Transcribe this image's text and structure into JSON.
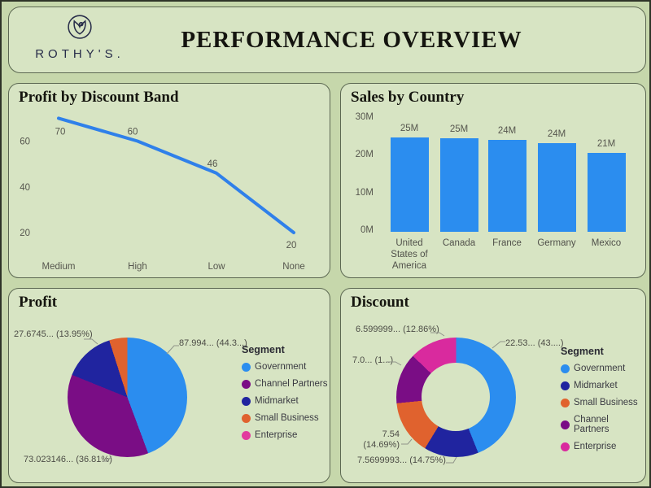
{
  "header": {
    "brand": "ROTHY'S.",
    "title": "PERFORMANCE OVERVIEW",
    "logo_icon": "rothys-tulip-bud-logo"
  },
  "colors": {
    "page_background": "#c6d7ab",
    "panel_background": "#d7e4c3",
    "panel_border": "#5c6852",
    "blue": "#2b8def",
    "line_blue": "#2f80ea",
    "navy": "#20249f",
    "purple": "#7a0d85",
    "orange": "#e0622e",
    "magenta": "#d92a9e",
    "text_muted": "#56564e"
  },
  "chart_data": [
    {
      "id": "profit_by_discount_band",
      "type": "line",
      "title": "Profit by Discount Band",
      "categories": [
        "Medium",
        "High",
        "Low",
        "None"
      ],
      "values": [
        70,
        60,
        46,
        20
      ],
      "data_labels": [
        "70",
        "60",
        "46",
        "20"
      ],
      "y_ticks": [
        60,
        40,
        20
      ],
      "ylim": [
        15,
        75
      ],
      "grid": false,
      "line_color": "#2f80ea"
    },
    {
      "id": "sales_by_country",
      "type": "bar",
      "title": "Sales by Country",
      "categories": [
        "United States of America",
        "Canada",
        "France",
        "Germany",
        "Mexico"
      ],
      "values": [
        25.03,
        24.89,
        24.35,
        23.51,
        20.95
      ],
      "data_labels": [
        "25M",
        "25M",
        "24M",
        "24M",
        "21M"
      ],
      "y_ticks": [
        {
          "label": "0M",
          "value": 0
        },
        {
          "label": "10M",
          "value": 10
        },
        {
          "label": "20M",
          "value": 20
        },
        {
          "label": "30M",
          "value": 30
        }
      ],
      "ylim": [
        0,
        30
      ],
      "grid": false,
      "bar_color": "#2b8def"
    },
    {
      "id": "profit_by_segment",
      "type": "pie",
      "title": "Profit",
      "legend_title": "Segment",
      "legend_position": "right",
      "slices": [
        {
          "label": "Government",
          "value": 87.994,
          "pct": 44.33,
          "color": "#2b8def",
          "callout": "87.994... (44.3...)"
        },
        {
          "label": "Channel Partners",
          "value": 73.023146,
          "pct": 36.81,
          "color": "#7a0d85",
          "callout": "73.023146... (36.81%)"
        },
        {
          "label": "Midmarket",
          "value": 27.6745,
          "pct": 13.95,
          "color": "#20249f",
          "callout": "27.6745... (13.95%)"
        },
        {
          "label": "Small Business",
          "pct": 4.91,
          "color": "#e0622e",
          "callout": ""
        },
        {
          "label": "Enterprise",
          "pct": 0,
          "color": "#e23a9e",
          "callout": ""
        }
      ]
    },
    {
      "id": "discount_by_segment",
      "type": "donut",
      "title": "Discount",
      "legend_title": "Segment",
      "legend_position": "right",
      "slices": [
        {
          "label": "Government",
          "value": 22.53,
          "pct": 43.96,
          "color": "#2b8def",
          "callout": "22.53... (43....)"
        },
        {
          "label": "Midmarket",
          "value": 7.5699993,
          "pct": 14.75,
          "color": "#20249f",
          "callout": "7.5699993... (14.75%)"
        },
        {
          "label": "Small Business",
          "value": 7.54,
          "pct": 14.69,
          "color": "#e0622e",
          "callout": "7.54\n(14.69%)"
        },
        {
          "label": "Channel Partners",
          "value": 7.0,
          "pct": 13.74,
          "color": "#7a0d85",
          "callout": "7.0... (1...)"
        },
        {
          "label": "Enterprise",
          "value": 6.599999,
          "pct": 12.86,
          "color": "#d92a9e",
          "callout": "6.599999... (12.86%)"
        }
      ]
    }
  ]
}
